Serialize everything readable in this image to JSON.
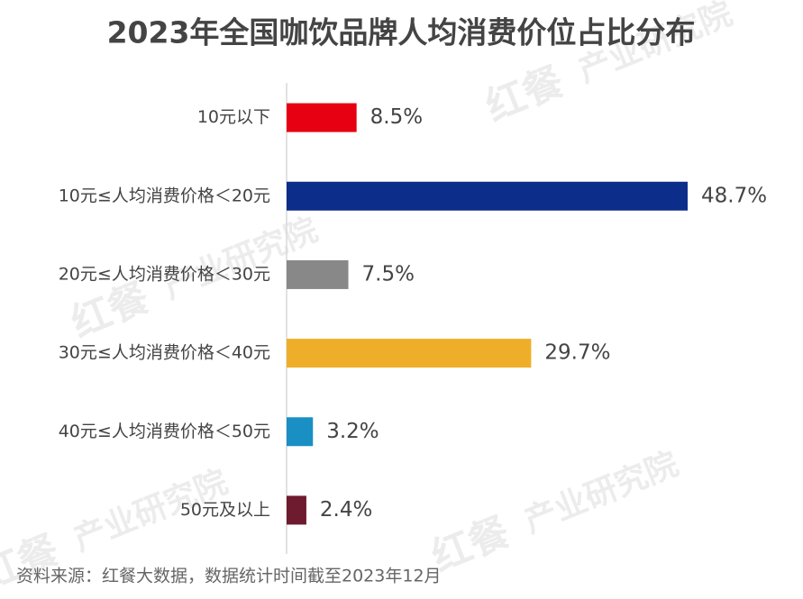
{
  "chart_data": {
    "type": "bar",
    "orientation": "horizontal",
    "title": "2023年全国咖饮品牌人均消费价位占比分布",
    "categories": [
      "10元以下",
      "10元≤人均消费价格＜20元",
      "20元≤人均消费价格＜30元",
      "30元≤人均消费价格＜40元",
      "40元≤人均消费价格＜50元",
      "50元及以上"
    ],
    "values": [
      8.5,
      48.7,
      7.5,
      29.7,
      3.2,
      2.4
    ],
    "value_labels": [
      "8.5%",
      "48.7%",
      "7.5%",
      "29.7%",
      "3.2%",
      "2.4%"
    ],
    "colors": [
      "#e60012",
      "#0d2d8a",
      "#888888",
      "#efae2a",
      "#1a8fc4",
      "#6e1a2f"
    ],
    "source": "资料来源：红餐大数据，数据统计时间截至2023年12月",
    "watermark": [
      "红餐",
      "产业研究院"
    ]
  }
}
